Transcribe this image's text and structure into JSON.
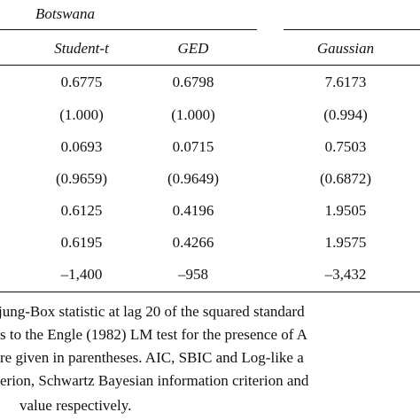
{
  "header": {
    "country": "Botswana",
    "columns": [
      "Student-t",
      "GED",
      "Gaussian"
    ]
  },
  "table": {
    "rows": [
      [
        "0.6775",
        "0.6798",
        "7.6173"
      ],
      [
        "(1.000)",
        "(1.000)",
        "(0.994)"
      ],
      [
        "0.0693",
        "0.0715",
        "0.7503"
      ],
      [
        "(0.9659)",
        "(0.9649)",
        "(0.6872)"
      ],
      [
        "0.6125",
        "0.4196",
        "1.9505"
      ],
      [
        "0.6195",
        "0.4266",
        "1.9575"
      ],
      [
        "–1,400",
        "–958",
        "–3,432"
      ]
    ]
  },
  "notes": [
    "jung-Box statistic at lag 20 of the squared standard",
    "s to the Engle (1982) LM test for the presence of A",
    "re given in parentheses. AIC, SBIC and Log-like a",
    "erion, Schwartz Bayesian information criterion and",
    "value respectively."
  ]
}
